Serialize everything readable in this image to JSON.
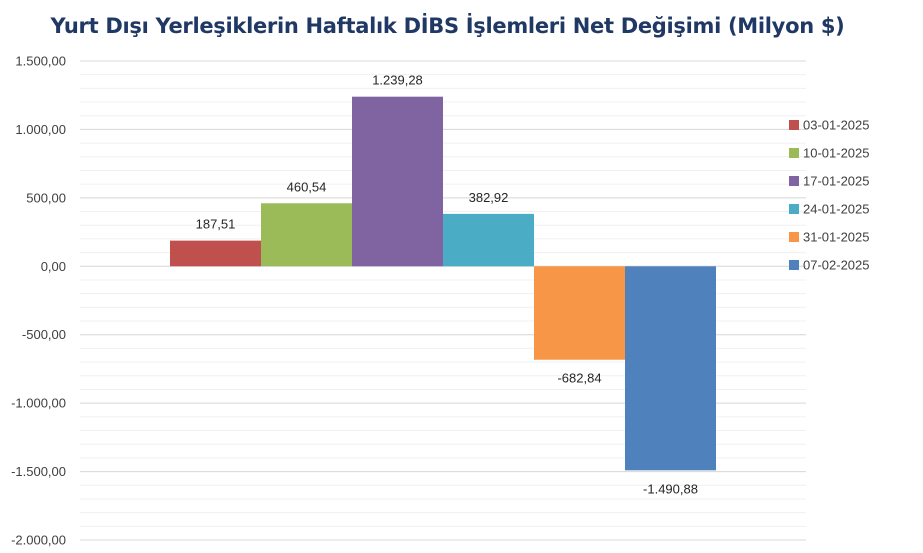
{
  "chart_data": {
    "type": "bar",
    "title": "Yurt Dışı Yerleşiklerin Haftalık DİBS İşlemleri Net Değişimi (Milyon $)",
    "xlabel": "",
    "ylabel": "",
    "ylim": [
      -2000,
      1500
    ],
    "yticks": [
      1500,
      1000,
      500,
      0,
      -500,
      -1000,
      -1500,
      -2000
    ],
    "ytick_labels": [
      "1.500,00",
      "1.000,00",
      "500,00",
      "0,00",
      "-500,00",
      "-1.000,00",
      "-1.500,00",
      "-2.000,00"
    ],
    "grid": true,
    "legend_position": "right",
    "series": [
      {
        "name": "03-01-2025",
        "value": 187.51,
        "label": "187,51",
        "color": "#c0504d"
      },
      {
        "name": "10-01-2025",
        "value": 460.54,
        "label": "460,54",
        "color": "#9bbb59"
      },
      {
        "name": "17-01-2025",
        "value": 1239.28,
        "label": "1.239,28",
        "color": "#8064a2"
      },
      {
        "name": "24-01-2025",
        "value": 382.92,
        "label": "382,92",
        "color": "#4bacc6"
      },
      {
        "name": "31-01-2025",
        "value": -682.84,
        "label": "-682,84",
        "color": "#f79646"
      },
      {
        "name": "07-02-2025",
        "value": -1490.88,
        "label": "-1.490,88",
        "color": "#4f81bd"
      }
    ]
  }
}
